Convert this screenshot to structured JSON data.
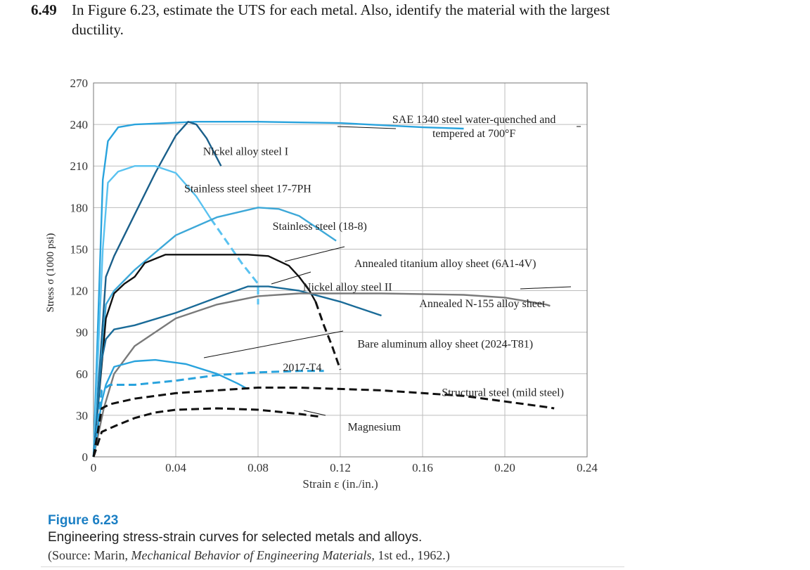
{
  "problem": {
    "number": "6.49",
    "text": "In Figure 6.23, estimate the UTS for each metal. Also, identify the material with the largest ductility."
  },
  "caption": {
    "title": "Figure 6.23",
    "description": "Engineering stress-strain curves for selected metals and alloys.",
    "source_prefix": "(Source: Marin, ",
    "source_title": "Mechanical Behavior of Engineering Materials,",
    "source_suffix": " 1st ed., 1962.)"
  },
  "chart_data": {
    "type": "line",
    "title": "",
    "xlabel": "Strain ε (in./in.)",
    "ylabel": "Stress σ (1000 psi)",
    "xlim": [
      0,
      0.24
    ],
    "ylim": [
      0,
      270
    ],
    "grid": true,
    "x_ticks": [
      0,
      0.04,
      0.08,
      0.12,
      0.16,
      0.2,
      0.24
    ],
    "x_tick_labels": [
      "0",
      "0.04",
      "0.08",
      "0.12",
      "0.16",
      "0.20",
      "0.24"
    ],
    "y_ticks": [
      0,
      30,
      60,
      90,
      120,
      150,
      180,
      210,
      240,
      270
    ],
    "y_tick_labels": [
      "0",
      "30",
      "60",
      "90",
      "120",
      "150",
      "180",
      "210",
      "240",
      "270"
    ],
    "series": [
      {
        "name": "SAE 1340 steel water-quenched and tempered at 700°F",
        "color": "#29a3dd",
        "dash": false,
        "points": [
          [
            0,
            0
          ],
          [
            0.0045,
            200
          ],
          [
            0.007,
            228
          ],
          [
            0.012,
            238
          ],
          [
            0.02,
            240
          ],
          [
            0.05,
            242
          ],
          [
            0.08,
            242
          ],
          [
            0.12,
            241
          ],
          [
            0.16,
            238
          ],
          [
            0.18,
            237
          ]
        ]
      },
      {
        "name": "Nickel alloy steel I",
        "color": "#1a5f8a",
        "dash": false,
        "points": [
          [
            0,
            0
          ],
          [
            0.006,
            130
          ],
          [
            0.01,
            145
          ],
          [
            0.02,
            175
          ],
          [
            0.03,
            205
          ],
          [
            0.04,
            232
          ],
          [
            0.046,
            242
          ],
          [
            0.05,
            240
          ],
          [
            0.055,
            230
          ],
          [
            0.062,
            210
          ]
        ]
      },
      {
        "name": "Stainless steel sheet 17-7PH",
        "color": "#59c2f0",
        "dash": false,
        "points": [
          [
            0,
            0
          ],
          [
            0.0045,
            150
          ],
          [
            0.007,
            198
          ],
          [
            0.012,
            206
          ],
          [
            0.02,
            210
          ],
          [
            0.03,
            210
          ],
          [
            0.04,
            205
          ],
          [
            0.05,
            188
          ],
          [
            0.057,
            172
          ]
        ]
      },
      {
        "name": "Stainless steel sheet 17-7PH (fracture)",
        "color": "#59c2f0",
        "dash": true,
        "points": [
          [
            0.057,
            172
          ],
          [
            0.065,
            155
          ],
          [
            0.072,
            140
          ],
          [
            0.08,
            125
          ],
          [
            0.08,
            110
          ]
        ]
      },
      {
        "name": "Stainless steel (18-8)",
        "color": "#3da8d8",
        "dash": false,
        "points": [
          [
            0,
            0
          ],
          [
            0.006,
            110
          ],
          [
            0.01,
            120
          ],
          [
            0.02,
            135
          ],
          [
            0.04,
            160
          ],
          [
            0.06,
            173
          ],
          [
            0.08,
            180
          ],
          [
            0.09,
            179
          ],
          [
            0.1,
            174
          ],
          [
            0.11,
            164
          ],
          [
            0.118,
            156
          ]
        ]
      },
      {
        "name": "Annealed titanium alloy sheet (6A1-4V)",
        "color": "#111111",
        "dash": false,
        "points": [
          [
            0,
            0
          ],
          [
            0.006,
            100
          ],
          [
            0.01,
            118
          ],
          [
            0.015,
            125
          ],
          [
            0.02,
            130
          ],
          [
            0.025,
            140
          ],
          [
            0.035,
            146
          ],
          [
            0.06,
            146
          ],
          [
            0.075,
            146
          ],
          [
            0.085,
            145
          ],
          [
            0.095,
            138
          ],
          [
            0.1,
            130
          ],
          [
            0.105,
            120
          ],
          [
            0.108,
            112
          ]
        ]
      },
      {
        "name": "Annealed titanium alloy sheet (6A1-4V) (fracture)",
        "color": "#111111",
        "dash": true,
        "points": [
          [
            0.108,
            112
          ],
          [
            0.112,
            95
          ],
          [
            0.116,
            80
          ],
          [
            0.12,
            63
          ]
        ]
      },
      {
        "name": "Nickel alloy steel II",
        "color": "#1a6b98",
        "dash": false,
        "points": [
          [
            0,
            0
          ],
          [
            0.004,
            70
          ],
          [
            0.006,
            85
          ],
          [
            0.01,
            92
          ],
          [
            0.02,
            95
          ],
          [
            0.04,
            104
          ],
          [
            0.06,
            115
          ],
          [
            0.075,
            123
          ],
          [
            0.085,
            123
          ],
          [
            0.1,
            120
          ],
          [
            0.12,
            112
          ],
          [
            0.14,
            102
          ]
        ]
      },
      {
        "name": "Annealed N-155 alloy sheet",
        "color": "#7a7a7a",
        "dash": false,
        "points": [
          [
            0,
            0
          ],
          [
            0.005,
            35
          ],
          [
            0.01,
            60
          ],
          [
            0.02,
            80
          ],
          [
            0.04,
            100
          ],
          [
            0.06,
            110
          ],
          [
            0.08,
            116
          ],
          [
            0.1,
            118
          ],
          [
            0.14,
            118
          ],
          [
            0.18,
            117
          ],
          [
            0.2,
            115
          ],
          [
            0.22,
            110
          ],
          [
            0.222,
            109
          ]
        ]
      },
      {
        "name": "Bare aluminum alloy sheet (2024-T81)",
        "color": "#29a3dd",
        "dash": false,
        "points": [
          [
            0,
            0
          ],
          [
            0.004,
            40
          ],
          [
            0.006,
            52
          ],
          [
            0.01,
            65
          ],
          [
            0.02,
            69
          ],
          [
            0.03,
            70
          ],
          [
            0.045,
            67
          ],
          [
            0.06,
            60
          ],
          [
            0.07,
            53
          ],
          [
            0.075,
            49
          ]
        ]
      },
      {
        "name": "2017-T4",
        "color": "#29a3dd",
        "dash": true,
        "points": [
          [
            0,
            0
          ],
          [
            0.004,
            48
          ],
          [
            0.008,
            52
          ],
          [
            0.02,
            52
          ],
          [
            0.04,
            55
          ],
          [
            0.06,
            59
          ],
          [
            0.08,
            61
          ],
          [
            0.1,
            62
          ],
          [
            0.112,
            62
          ]
        ]
      },
      {
        "name": "Structural steel (mild steel)",
        "color": "#111111",
        "dash": true,
        "points": [
          [
            0,
            0
          ],
          [
            0.004,
            35
          ],
          [
            0.008,
            38
          ],
          [
            0.02,
            42
          ],
          [
            0.04,
            46
          ],
          [
            0.06,
            48
          ],
          [
            0.08,
            50
          ],
          [
            0.1,
            50
          ],
          [
            0.14,
            48
          ],
          [
            0.18,
            44
          ],
          [
            0.2,
            40
          ],
          [
            0.22,
            36
          ],
          [
            0.224,
            35
          ]
        ]
      },
      {
        "name": "Magnesium",
        "color": "#111111",
        "dash": true,
        "points": [
          [
            0,
            0
          ],
          [
            0.004,
            18
          ],
          [
            0.01,
            22
          ],
          [
            0.02,
            28
          ],
          [
            0.03,
            32
          ],
          [
            0.04,
            34
          ],
          [
            0.06,
            35
          ],
          [
            0.08,
            34
          ],
          [
            0.1,
            31
          ],
          [
            0.11,
            29
          ]
        ]
      }
    ],
    "annotations": [
      {
        "text": "SAE 1340 steel water-quenched and",
        "x": 0.185,
        "y": 241
      },
      {
        "text": "tempered at 700°F",
        "x": 0.185,
        "y": 231
      },
      {
        "text": "Nickel alloy steel I",
        "x": 0.074,
        "y": 218
      },
      {
        "text": "Stainless steel sheet 17-7PH",
        "x": 0.075,
        "y": 191
      },
      {
        "text": "Stainless steel (18-8)",
        "x": 0.11,
        "y": 164
      },
      {
        "text": "Annealed titanium alloy sheet (6A1-4V)",
        "x": 0.171,
        "y": 137
      },
      {
        "text": "Nickel alloy steel II",
        "x": 0.1235,
        "y": 120
      },
      {
        "text": "Annealed N-155 alloy sheet",
        "x": 0.189,
        "y": 108
      },
      {
        "text": "Bare aluminum alloy sheet (2024-T81)",
        "x": 0.171,
        "y": 79
      },
      {
        "text": "2017-T4",
        "x": 0.1015,
        "y": 62
      },
      {
        "text": "Structural steel (mild steel)",
        "x": 0.199,
        "y": 44
      },
      {
        "text": "Magnesium",
        "x": 0.1365,
        "y": 19
      }
    ]
  }
}
